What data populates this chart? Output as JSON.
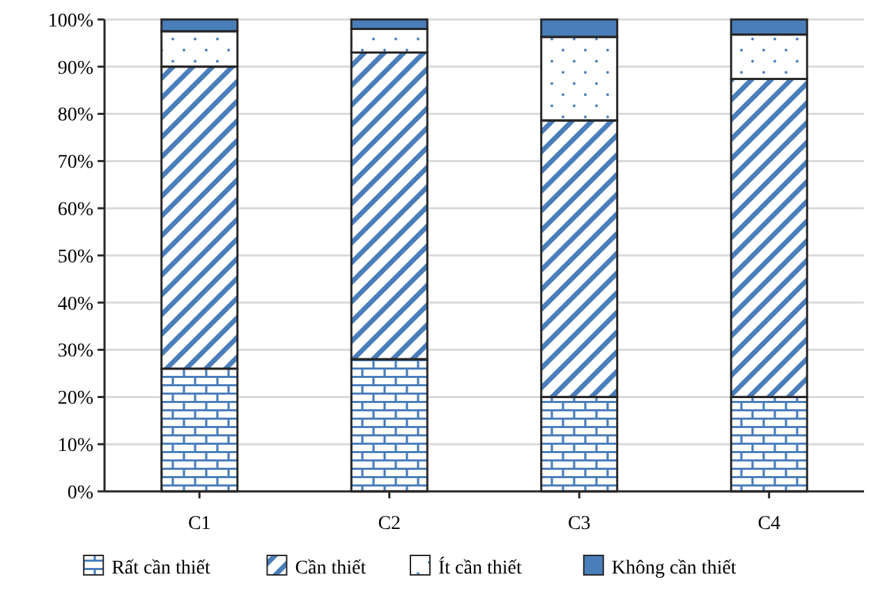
{
  "chart_data": {
    "type": "bar",
    "stacked": true,
    "categories": [
      "C1",
      "C2",
      "C3",
      "C4"
    ],
    "series": [
      {
        "name": "Rất cần thiết",
        "color": "#4a7ebb",
        "values": [
          26,
          28,
          20,
          20
        ]
      },
      {
        "name": "Cần thiết",
        "color": "#4a7ebb",
        "values": [
          64,
          65,
          58.6,
          67.4
        ]
      },
      {
        "name": "Ít cần thiết",
        "color": "#4a7ebb",
        "values": [
          7.5,
          5,
          17.7,
          9.4
        ]
      },
      {
        "name": "Không cần thiết",
        "color": "#4a7ebb",
        "values": [
          2.5,
          2,
          3.7,
          3.2
        ]
      }
    ],
    "ylim": [
      0,
      100
    ],
    "yticks": [
      {
        "value": 0,
        "label": "0%"
      },
      {
        "value": 10,
        "label": "10%"
      },
      {
        "value": 20,
        "label": "20%"
      },
      {
        "value": 30,
        "label": "30%"
      },
      {
        "value": 40,
        "label": "40%"
      },
      {
        "value": 50,
        "label": "50%"
      },
      {
        "value": 60,
        "label": "60%"
      },
      {
        "value": 70,
        "label": "70%"
      },
      {
        "value": 80,
        "label": "80%"
      },
      {
        "value": 90,
        "label": "90%"
      },
      {
        "value": 100,
        "label": "100%"
      }
    ],
    "grid": "y",
    "legend": "bottom"
  }
}
